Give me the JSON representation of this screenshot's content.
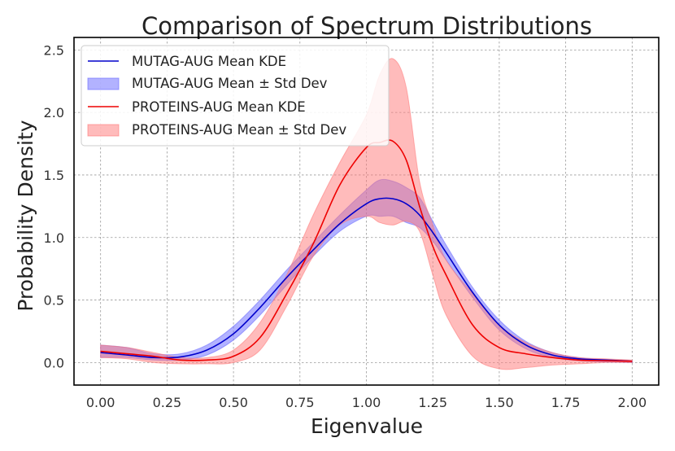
{
  "chart_data": {
    "type": "line",
    "title": "Comparison of Spectrum Distributions",
    "xlabel": "Eigenvalue",
    "ylabel": "Probability Density",
    "xlim": [
      -0.1,
      2.1
    ],
    "ylim": [
      -0.18,
      2.6
    ],
    "x_ticks": [
      0.0,
      0.25,
      0.5,
      0.75,
      1.0,
      1.25,
      1.5,
      1.75,
      2.0
    ],
    "x_tick_labels": [
      "0.00",
      "0.25",
      "0.50",
      "0.75",
      "1.00",
      "1.25",
      "1.50",
      "1.75",
      "2.00"
    ],
    "y_ticks": [
      0.0,
      0.5,
      1.0,
      1.5,
      2.0,
      2.5
    ],
    "y_tick_labels": [
      "0.0",
      "0.5",
      "1.0",
      "1.5",
      "2.0",
      "2.5"
    ],
    "grid": true,
    "legend_position": "top-left",
    "x": [
      0,
      0.1,
      0.2,
      0.3,
      0.4,
      0.5,
      0.6,
      0.7,
      0.8,
      0.9,
      1.0,
      1.05,
      1.1,
      1.15,
      1.2,
      1.25,
      1.3,
      1.4,
      1.5,
      1.6,
      1.7,
      1.8,
      1.9,
      2.0
    ],
    "series": [
      {
        "name": "MUTAG-AUG Mean KDE",
        "kind": "line",
        "color": "#0000cc",
        "values": [
          0.08,
          0.06,
          0.04,
          0.045,
          0.1,
          0.23,
          0.44,
          0.68,
          0.9,
          1.11,
          1.27,
          1.31,
          1.31,
          1.27,
          1.18,
          1.04,
          0.88,
          0.56,
          0.3,
          0.14,
          0.06,
          0.03,
          0.02,
          0.01
        ]
      },
      {
        "name": "MUTAG-AUG Mean ± Std Dev",
        "kind": "band",
        "color": "#6666ff",
        "lower": [
          0.04,
          0.04,
          0.02,
          0.02,
          0.06,
          0.18,
          0.38,
          0.62,
          0.85,
          1.05,
          1.17,
          1.17,
          1.17,
          1.12,
          1.08,
          0.97,
          0.82,
          0.52,
          0.26,
          0.11,
          0.04,
          0.015,
          0.005,
          0.0
        ],
        "upper": [
          0.14,
          0.12,
          0.07,
          0.07,
          0.14,
          0.29,
          0.5,
          0.74,
          0.96,
          1.18,
          1.38,
          1.46,
          1.45,
          1.4,
          1.32,
          1.13,
          0.94,
          0.6,
          0.34,
          0.17,
          0.08,
          0.04,
          0.025,
          0.015
        ]
      },
      {
        "name": "PROTEINS-AUG Mean KDE",
        "kind": "line",
        "color": "#ee0000",
        "values": [
          0.09,
          0.07,
          0.05,
          0.02,
          0.02,
          0.05,
          0.2,
          0.55,
          0.95,
          1.42,
          1.72,
          1.76,
          1.77,
          1.62,
          1.25,
          0.93,
          0.7,
          0.3,
          0.12,
          0.07,
          0.04,
          0.02,
          0.015,
          0.01
        ]
      },
      {
        "name": "PROTEINS-AUG Mean ± Std Dev",
        "kind": "band",
        "color": "#ff7777",
        "lower": [
          0.04,
          0.03,
          0.0,
          -0.01,
          -0.01,
          0.0,
          0.1,
          0.45,
          0.85,
          1.1,
          1.17,
          1.12,
          1.1,
          1.13,
          1.05,
          0.7,
          0.38,
          0.05,
          -0.05,
          -0.04,
          -0.02,
          -0.01,
          0.0,
          0.0
        ],
        "upper": [
          0.14,
          0.12,
          0.08,
          0.04,
          0.04,
          0.1,
          0.32,
          0.7,
          1.18,
          1.6,
          1.98,
          2.3,
          2.43,
          2.2,
          1.45,
          1.1,
          0.82,
          0.55,
          0.3,
          0.16,
          0.08,
          0.04,
          0.03,
          0.02
        ]
      }
    ]
  }
}
